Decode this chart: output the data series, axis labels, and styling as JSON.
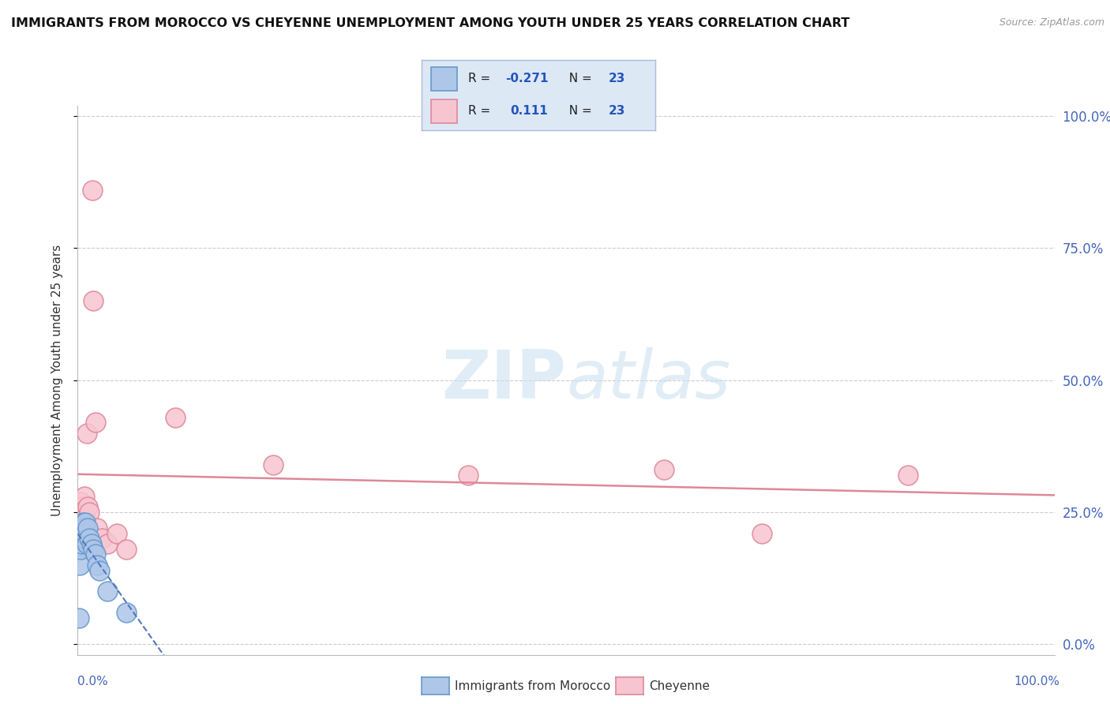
{
  "title": "IMMIGRANTS FROM MOROCCO VS CHEYENNE UNEMPLOYMENT AMONG YOUTH UNDER 25 YEARS CORRELATION CHART",
  "source": "Source: ZipAtlas.com",
  "ylabel": "Unemployment Among Youth under 25 years",
  "r_morocco": -0.271,
  "n_morocco": 23,
  "r_cheyenne": 0.111,
  "n_cheyenne": 23,
  "xlim": [
    0.0,
    1.0
  ],
  "ylim": [
    -0.02,
    1.02
  ],
  "yticks": [
    0.0,
    0.25,
    0.5,
    0.75,
    1.0
  ],
  "right_ytick_labels": [
    "0.0%",
    "25.0%",
    "50.0%",
    "75.0%",
    "100.0%"
  ],
  "background_color": "#ffffff",
  "grid_color": "#cccccc",
  "morocco_color": "#aec6e8",
  "morocco_edge_color": "#6699cc",
  "cheyenne_color": "#f7c5d0",
  "cheyenne_edge_color": "#dd8899",
  "morocco_line_color": "#5577bb",
  "cheyenne_line_color": "#dd8899",
  "legend_bg": "#dde8f5",
  "legend_edge": "#aabbdd",
  "watermark_zip": "ZIP",
  "watermark_atlas": "atlas",
  "morocco_x": [
    0.001,
    0.002,
    0.003,
    0.004,
    0.005,
    0.005,
    0.005,
    0.006,
    0.006,
    0.007,
    0.007,
    0.008,
    0.008,
    0.009,
    0.01,
    0.012,
    0.014,
    0.016,
    0.018,
    0.02,
    0.022,
    0.03,
    0.05
  ],
  "morocco_y": [
    0.05,
    0.15,
    0.18,
    0.19,
    0.2,
    0.22,
    0.23,
    0.21,
    0.22,
    0.2,
    0.22,
    0.21,
    0.23,
    0.19,
    0.22,
    0.2,
    0.19,
    0.18,
    0.17,
    0.15,
    0.14,
    0.1,
    0.06
  ],
  "cheyenne_x": [
    0.001,
    0.003,
    0.005,
    0.007,
    0.008,
    0.009,
    0.01,
    0.012,
    0.014,
    0.015,
    0.016,
    0.018,
    0.02,
    0.025,
    0.03,
    0.04,
    0.05,
    0.1,
    0.2,
    0.4,
    0.6,
    0.7,
    0.85
  ],
  "cheyenne_y": [
    0.25,
    0.27,
    0.26,
    0.28,
    0.24,
    0.4,
    0.26,
    0.25,
    0.19,
    0.86,
    0.65,
    0.42,
    0.22,
    0.2,
    0.19,
    0.21,
    0.18,
    0.43,
    0.34,
    0.32,
    0.33,
    0.21,
    0.32
  ]
}
